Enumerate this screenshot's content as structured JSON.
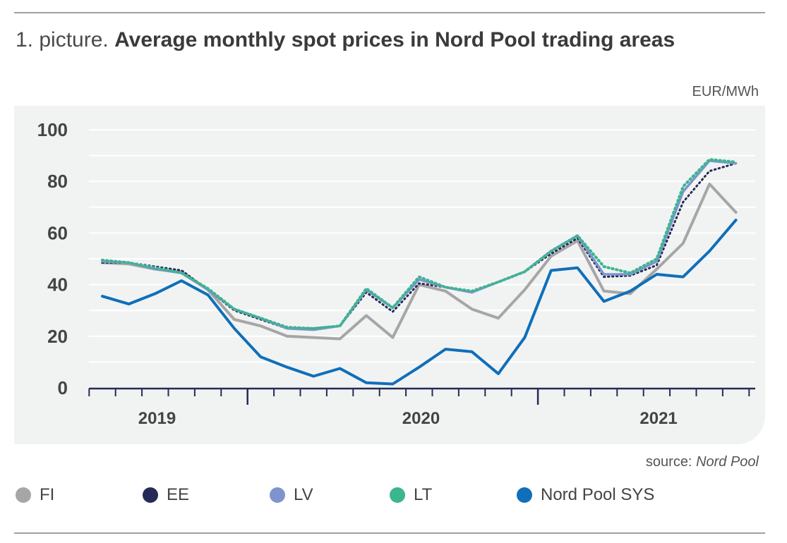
{
  "header": {
    "title_prefix": "1. picture.",
    "title_main": "Average monthly spot prices in Nord Pool trading areas",
    "unit": "EUR/MWh"
  },
  "footer": {
    "source_prefix": "source:",
    "source_name": "Nord Pool"
  },
  "chart_data": {
    "type": "line",
    "title": "Average monthly spot prices in Nord Pool trading areas",
    "ylabel": "EUR/MWh",
    "xlabel": "",
    "ylim": [
      0,
      100
    ],
    "yticks": [
      0,
      20,
      40,
      60,
      80,
      100
    ],
    "grid": true,
    "legend_position": "bottom",
    "year_labels": [
      {
        "label": "2019",
        "month": 2.5
      },
      {
        "label": "2020",
        "month": 12.5
      },
      {
        "label": "2021",
        "month": 21.5
      }
    ],
    "months": 26,
    "x": [
      0,
      1,
      2,
      3,
      4,
      5,
      6,
      7,
      8,
      9,
      10,
      11,
      12,
      13,
      14,
      15,
      16,
      17,
      18,
      19,
      20,
      21,
      22,
      23,
      24,
      25
    ],
    "series": [
      {
        "name": "FI",
        "color": "#a6a6a6",
        "style": "solid",
        "width": 4,
        "values": [
          48.5,
          48,
          46,
          45,
          38,
          26.5,
          24,
          20,
          19.5,
          19,
          28,
          19.5,
          40,
          37.5,
          30.5,
          27,
          38,
          51,
          57,
          37.5,
          36.5,
          46,
          56,
          79,
          68,
          null
        ]
      },
      {
        "name": "EE",
        "color": "#252b56",
        "style": "dotted",
        "width": 3,
        "values": [
          48.5,
          48.5,
          47,
          45.5,
          38,
          30,
          26.5,
          23,
          23,
          24,
          37,
          29.5,
          40.5,
          39,
          37,
          41,
          45,
          52,
          58,
          43,
          43.5,
          47.5,
          72,
          84,
          87,
          null
        ]
      },
      {
        "name": "LV",
        "color": "#7f94ce",
        "style": "solid",
        "width": 3.5,
        "values": [
          49,
          48.5,
          46,
          44.5,
          38,
          30.5,
          27,
          23,
          22.5,
          24,
          38,
          31,
          42,
          39,
          37,
          41,
          45,
          53,
          59,
          44,
          44,
          49,
          76,
          88,
          87,
          null
        ]
      },
      {
        "name": "LT",
        "color": "#3cb591",
        "style": "dotted",
        "width": 4,
        "values": [
          49.5,
          48.5,
          46.5,
          44.5,
          38.5,
          30.5,
          27,
          23.5,
          23,
          24,
          38.5,
          31,
          43,
          39,
          37.5,
          41,
          45,
          53,
          59,
          47,
          44.5,
          50,
          78,
          88.5,
          87.5,
          null
        ]
      },
      {
        "name": "Nord Pool SYS",
        "color": "#0f6fba",
        "style": "solid",
        "width": 4,
        "values": [
          35.5,
          32.5,
          36.5,
          41.5,
          36,
          23,
          12,
          8,
          4.5,
          7.5,
          2,
          1.5,
          8,
          15,
          14,
          5.5,
          19.5,
          45.5,
          46.5,
          33.5,
          37.5,
          44,
          43,
          53,
          65,
          null
        ]
      }
    ]
  }
}
